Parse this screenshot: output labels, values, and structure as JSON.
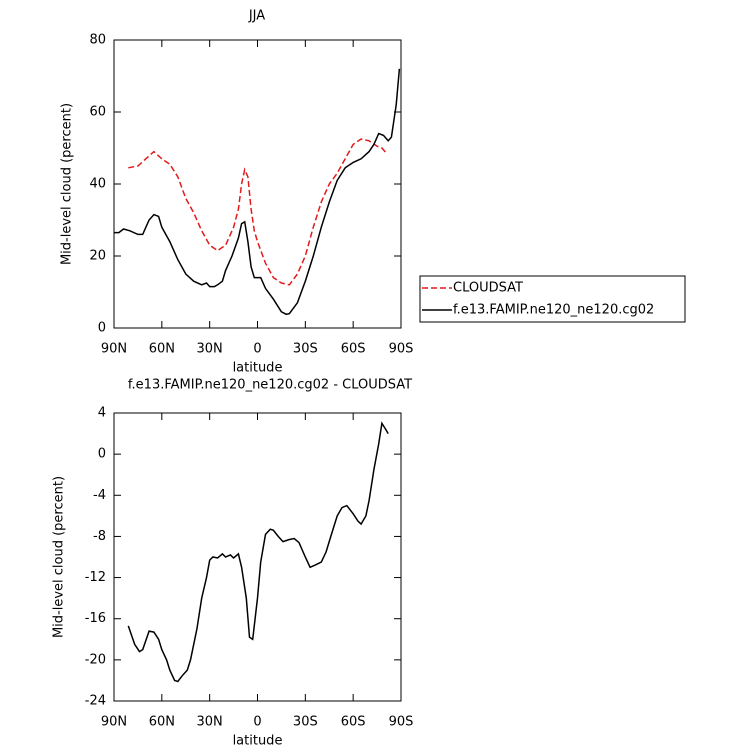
{
  "chart_data": [
    {
      "type": "line",
      "title": "JJA",
      "xlabel": "latitude",
      "ylabel": "Mid-level cloud (percent)",
      "xlim": [
        90,
        -90
      ],
      "xticks": [
        {
          "value": 90,
          "label": "90N"
        },
        {
          "value": 60,
          "label": "60N"
        },
        {
          "value": 30,
          "label": "30N"
        },
        0,
        {
          "value": -30,
          "label": "30S"
        },
        {
          "value": -60,
          "label": "60S"
        },
        {
          "value": -90,
          "label": "90S"
        }
      ],
      "ylim": [
        0,
        80
      ],
      "yticks": [
        0,
        20,
        40,
        60,
        80
      ],
      "legend": "right",
      "series": [
        {
          "name": "CLOUDSAT",
          "color": "#e31a1c",
          "line_style": "dashed",
          "x": [
            81,
            75,
            70,
            65,
            60,
            55,
            50,
            45,
            40,
            35,
            30,
            25,
            20,
            15,
            12,
            10,
            8,
            6,
            4,
            2,
            0,
            -5,
            -10,
            -15,
            -20,
            -25,
            -30,
            -35,
            -40,
            -45,
            -50,
            -55,
            -60,
            -65,
            -70,
            -75,
            -78,
            -81
          ],
          "values": [
            44.5,
            45,
            47,
            49,
            47,
            45.5,
            42,
            36,
            32,
            27,
            23,
            21.5,
            23,
            28,
            33,
            40,
            44,
            42,
            33,
            27,
            24,
            18,
            14,
            12.5,
            12,
            15,
            20,
            28,
            35,
            40,
            43,
            47,
            51,
            52.5,
            52,
            50.5,
            50,
            48.5
          ]
        },
        {
          "name": "f.e13.FAMIP.ne120_ne120.cg02",
          "color": "#000000",
          "line_style": "solid",
          "x": [
            90,
            87,
            84,
            80,
            75,
            72,
            68,
            65,
            62,
            60,
            55,
            50,
            45,
            40,
            35,
            32,
            30,
            27,
            25,
            22,
            20,
            16,
            12,
            10,
            8,
            6,
            4,
            2,
            0,
            -2,
            -5,
            -10,
            -15,
            -18,
            -20,
            -25,
            -30,
            -35,
            -40,
            -45,
            -50,
            -55,
            -60,
            -65,
            -70,
            -73,
            -76,
            -79,
            -82,
            -84,
            -87,
            -89
          ],
          "values": [
            26.5,
            26.5,
            27.5,
            27,
            26,
            26,
            30,
            31.5,
            31,
            28,
            24,
            19,
            15,
            13,
            12,
            12.5,
            11.5,
            11.5,
            12,
            13,
            16,
            20,
            25,
            29,
            29.5,
            24,
            17,
            14,
            14,
            14,
            11,
            8,
            4.5,
            3.8,
            4,
            7,
            13,
            20,
            28,
            35,
            41,
            44.5,
            46,
            47,
            49,
            51,
            54,
            53.5,
            52,
            53,
            62,
            72
          ]
        }
      ]
    },
    {
      "type": "line",
      "title": "f.e13.FAMIP.ne120_ne120.cg02 - CLOUDSAT",
      "xlabel": "latitude",
      "ylabel": "Mid-level cloud (percent)",
      "xlim": [
        90,
        -90
      ],
      "xticks": [
        {
          "value": 90,
          "label": "90N"
        },
        {
          "value": 60,
          "label": "60N"
        },
        {
          "value": 30,
          "label": "30N"
        },
        0,
        {
          "value": -30,
          "label": "30S"
        },
        {
          "value": -60,
          "label": "60S"
        },
        {
          "value": -90,
          "label": "90S"
        }
      ],
      "ylim": [
        -24,
        4
      ],
      "yticks": [
        -24,
        -20,
        -16,
        -12,
        -8,
        -4,
        0,
        4
      ],
      "series": [
        {
          "color": "#000000",
          "line_style": "solid",
          "x": [
            81,
            77,
            74,
            72,
            68,
            65,
            62,
            60,
            57,
            55,
            52,
            50,
            47,
            44,
            42,
            38,
            35,
            32,
            30,
            28,
            25,
            22,
            20,
            17,
            15,
            12,
            10,
            7,
            5,
            3,
            0,
            -2,
            -5,
            -8,
            -10,
            -13,
            -16,
            -20,
            -23,
            -26,
            -30,
            -33,
            -36,
            -40,
            -43,
            -46,
            -50,
            -53,
            -56,
            -60,
            -63,
            -65,
            -68,
            -70,
            -73,
            -76,
            -78,
            -80,
            -82
          ],
          "values": [
            -16.7,
            -18.5,
            -19.2,
            -19,
            -17.2,
            -17.3,
            -18,
            -19,
            -20,
            -21,
            -22,
            -22.1,
            -21.5,
            -21,
            -20,
            -17,
            -14,
            -12,
            -10.3,
            -10,
            -10.1,
            -9.7,
            -10,
            -9.8,
            -10.1,
            -9.7,
            -11,
            -14,
            -17.8,
            -18,
            -14,
            -10.5,
            -7.8,
            -7.3,
            -7.4,
            -8,
            -8.5,
            -8.3,
            -8.2,
            -8.6,
            -10,
            -11,
            -10.8,
            -10.5,
            -9.5,
            -8,
            -6,
            -5.2,
            -5,
            -5.8,
            -6.5,
            -6.8,
            -6,
            -4.5,
            -1.5,
            1,
            3,
            2.5,
            2
          ]
        }
      ]
    }
  ]
}
